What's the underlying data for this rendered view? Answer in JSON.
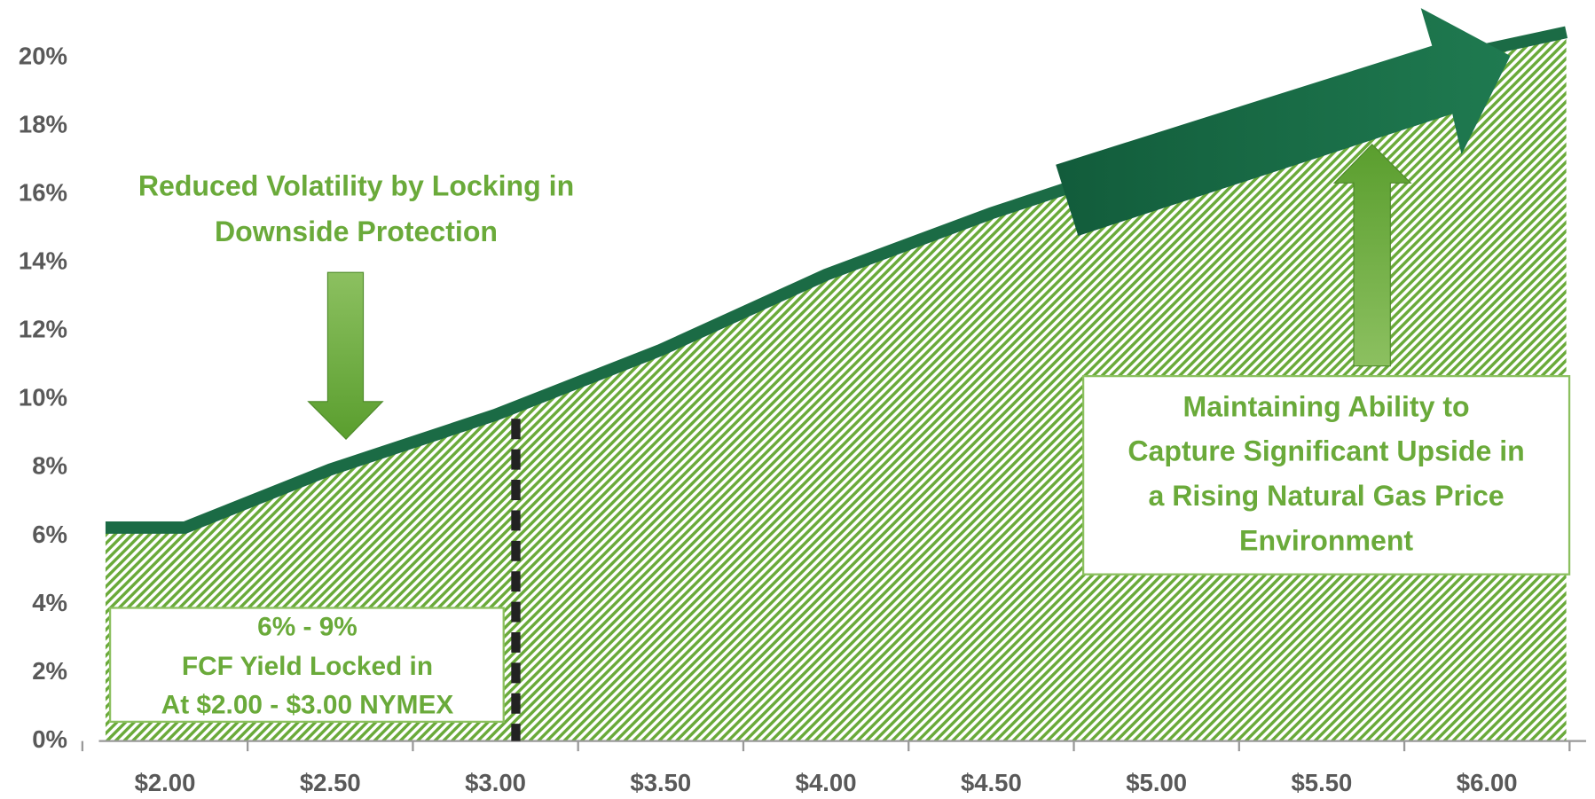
{
  "chart_data": {
    "type": "area",
    "x": [
      1.82,
      2.06,
      2.5,
      3.0,
      3.5,
      4.0,
      4.5,
      5.0,
      5.5,
      6.0,
      6.24
    ],
    "values": [
      6.1,
      6.1,
      7.8,
      9.4,
      11.3,
      13.5,
      15.3,
      16.9,
      18.5,
      20.1,
      20.6
    ],
    "color": "#1b6b45",
    "fill_color": "#6aaa3a",
    "xlim": [
      1.8,
      6.3
    ],
    "ylim": [
      0,
      20.8
    ],
    "xticks": [
      {
        "value": 2.0,
        "label": "$2.00"
      },
      {
        "value": 2.5,
        "label": "$2.50"
      },
      {
        "value": 3.0,
        "label": "$3.00"
      },
      {
        "value": 3.5,
        "label": "$3.50"
      },
      {
        "value": 4.0,
        "label": "$4.00"
      },
      {
        "value": 4.5,
        "label": "$4.50"
      },
      {
        "value": 5.0,
        "label": "$5.00"
      },
      {
        "value": 5.5,
        "label": "$5.50"
      },
      {
        "value": 6.0,
        "label": "$6.00"
      }
    ],
    "yticks": [
      {
        "value": 0,
        "label": "0%"
      },
      {
        "value": 2,
        "label": "2%"
      },
      {
        "value": 4,
        "label": "4%"
      },
      {
        "value": 6,
        "label": "6%"
      },
      {
        "value": 8,
        "label": "8%"
      },
      {
        "value": 10,
        "label": "10%"
      },
      {
        "value": 12,
        "label": "12%"
      },
      {
        "value": 14,
        "label": "14%"
      },
      {
        "value": 16,
        "label": "16%"
      },
      {
        "value": 18,
        "label": "18%"
      },
      {
        "value": 20,
        "label": "20%"
      }
    ],
    "annotations": [
      {
        "lines": [
          "Reduced Volatility by Locking in",
          "Downside Protection"
        ]
      },
      {
        "lines": [
          "6% - 9%",
          "FCF Yield Locked in",
          "At $2.00 - $3.00 NYMEX"
        ]
      },
      {
        "lines": [
          "Maintaining Ability to",
          "Capture Significant Upside in",
          "a Rising Natural Gas Price",
          "Environment"
        ]
      }
    ]
  }
}
